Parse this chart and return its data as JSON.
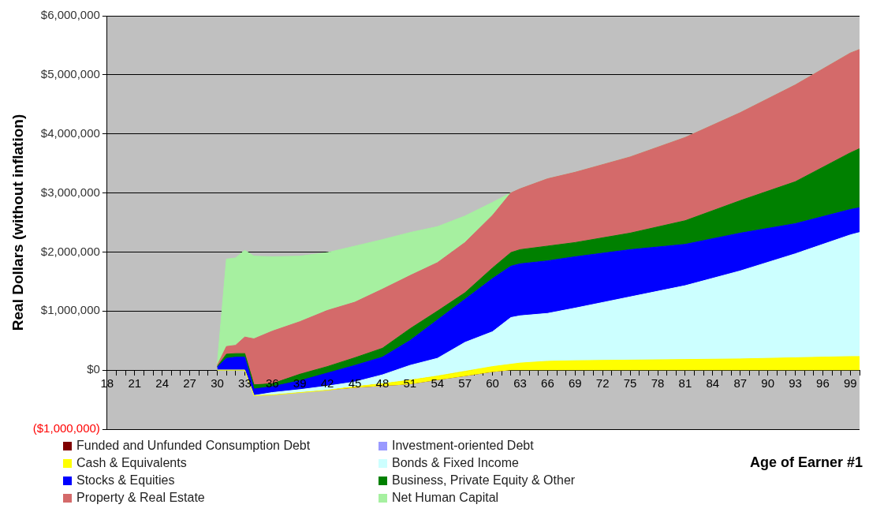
{
  "chart_data": {
    "type": "area",
    "xlabel": "Age of Earner #1",
    "ylabel": "Real Dollars (without inflation)",
    "x": [
      30,
      31,
      32,
      33,
      34,
      36,
      39,
      42,
      45,
      48,
      51,
      54,
      57,
      60,
      62,
      63,
      66,
      69,
      75,
      81,
      87,
      93,
      99,
      100
    ],
    "series": [
      {
        "name": "Funded and Unfunded Consumption Debt",
        "color": "#800000",
        "values": [
          0,
          0,
          0,
          0,
          -430000,
          -420000,
          -380000,
          -340000,
          -300000,
          -270000,
          -240000,
          -170000,
          -100000,
          -30000,
          0,
          0,
          0,
          0,
          0,
          0,
          0,
          0,
          0,
          0
        ]
      },
      {
        "name": "Investment-oriented Debt",
        "color": "#9999ff",
        "values": [
          null,
          null,
          null,
          null,
          null,
          null,
          null,
          null,
          null,
          null,
          null,
          null,
          null,
          null,
          null,
          null,
          null,
          null,
          null,
          null,
          null,
          null,
          null,
          null
        ]
      },
      {
        "name": "Cash & Equivalents",
        "color": "#ffff00",
        "values": [
          0,
          0,
          0,
          0,
          0,
          0,
          0,
          0,
          20000,
          40000,
          70000,
          70000,
          80000,
          90000,
          100000,
          120000,
          150000,
          160000,
          170000,
          180000,
          190000,
          210000,
          230000,
          230000
        ]
      },
      {
        "name": "Bonds & Fixed Income",
        "color": "#ccffff",
        "values": [
          0,
          0,
          0,
          0,
          0,
          40000,
          50000,
          70000,
          80000,
          150000,
          250000,
          300000,
          490000,
          590000,
          790000,
          800000,
          810000,
          890000,
          1070000,
          1250000,
          1490000,
          1760000,
          2060000,
          2100000
        ]
      },
      {
        "name": "Stocks & Equities",
        "color": "#0000ff",
        "values": [
          50000,
          200000,
          220000,
          220000,
          110000,
          100000,
          150000,
          220000,
          280000,
          300000,
          420000,
          650000,
          730000,
          900000,
          870000,
          880000,
          890000,
          870000,
          800000,
          700000,
          640000,
          510000,
          430000,
          420000
        ]
      },
      {
        "name": "Business, Private Equity & Other",
        "color": "#008000",
        "values": [
          10000,
          70000,
          60000,
          60000,
          70000,
          50000,
          110000,
          110000,
          130000,
          150000,
          200000,
          150000,
          110000,
          180000,
          230000,
          240000,
          250000,
          240000,
          280000,
          400000,
          550000,
          710000,
          960000,
          1000000
        ]
      },
      {
        "name": "Property & Real Estate",
        "color": "#d46a6a",
        "values": [
          20000,
          130000,
          140000,
          280000,
          780000,
          890000,
          890000,
          950000,
          940000,
          1000000,
          900000,
          820000,
          850000,
          890000,
          1010000,
          1030000,
          1140000,
          1190000,
          1290000,
          1410000,
          1490000,
          1640000,
          1690000,
          1680000
        ]
      },
      {
        "name": "Net Human Capital",
        "color": "#a6f0a0",
        "values": [
          20000,
          1480000,
          1480000,
          1470000,
          1400000,
          1260000,
          1110000,
          980000,
          950000,
          840000,
          730000,
          610000,
          450000,
          220000,
          0,
          0,
          0,
          0,
          0,
          0,
          0,
          0,
          0,
          0
        ]
      }
    ],
    "stacked": true,
    "xlim": [
      18,
      100
    ],
    "xticks": [
      18,
      {
        "value": 19,
        "label": null
      },
      {
        "value": 20,
        "label": null
      },
      21,
      {
        "value": 22,
        "label": null
      },
      {
        "value": 23,
        "label": null
      },
      24,
      {
        "value": 25,
        "label": null
      },
      {
        "value": 26,
        "label": null
      },
      27,
      {
        "value": 28,
        "label": null
      },
      {
        "value": 29,
        "label": null
      },
      30,
      {
        "value": 31,
        "label": null
      },
      {
        "value": 32,
        "label": null
      },
      33,
      {
        "value": 34,
        "label": null
      },
      {
        "value": 35,
        "label": null
      },
      36,
      {
        "value": 37,
        "label": null
      },
      {
        "value": 38,
        "label": null
      },
      39,
      {
        "value": 40,
        "label": null
      },
      {
        "value": 41,
        "label": null
      },
      42,
      {
        "value": 43,
        "label": null
      },
      {
        "value": 44,
        "label": null
      },
      45,
      {
        "value": 46,
        "label": null
      },
      {
        "value": 47,
        "label": null
      },
      48,
      {
        "value": 49,
        "label": null
      },
      {
        "value": 50,
        "label": null
      },
      51,
      {
        "value": 52,
        "label": null
      },
      {
        "value": 53,
        "label": null
      },
      54,
      {
        "value": 55,
        "label": null
      },
      {
        "value": 56,
        "label": null
      },
      57,
      {
        "value": 58,
        "label": null
      },
      {
        "value": 59,
        "label": null
      },
      60,
      {
        "value": 61,
        "label": null
      },
      {
        "value": 62,
        "label": null
      },
      63,
      {
        "value": 64,
        "label": null
      },
      {
        "value": 65,
        "label": null
      },
      66,
      {
        "value": 67,
        "label": null
      },
      {
        "value": 68,
        "label": null
      },
      69,
      {
        "value": 70,
        "label": null
      },
      {
        "value": 71,
        "label": null
      },
      72,
      {
        "value": 73,
        "label": null
      },
      {
        "value": 74,
        "label": null
      },
      75,
      {
        "value": 76,
        "label": null
      },
      {
        "value": 77,
        "label": null
      },
      78,
      {
        "value": 79,
        "label": null
      },
      {
        "value": 80,
        "label": null
      },
      81,
      {
        "value": 82,
        "label": null
      },
      {
        "value": 83,
        "label": null
      },
      84,
      {
        "value": 85,
        "label": null
      },
      {
        "value": 86,
        "label": null
      },
      87,
      {
        "value": 88,
        "label": null
      },
      {
        "value": 89,
        "label": null
      },
      90,
      {
        "value": 91,
        "label": null
      },
      {
        "value": 92,
        "label": null
      },
      93,
      {
        "value": 94,
        "label": null
      },
      {
        "value": 95,
        "label": null
      },
      96,
      {
        "value": 97,
        "label": null
      },
      {
        "value": 98,
        "label": null
      },
      99,
      {
        "value": 100,
        "label": null
      }
    ],
    "ylim": [
      -1000000,
      6000000
    ],
    "yticks": [
      {
        "value": -1000000,
        "label": "($1,000,000)"
      },
      {
        "value": 0,
        "label": "$0"
      },
      {
        "value": 1000000,
        "label": "$1,000,000"
      },
      {
        "value": 2000000,
        "label": "$2,000,000"
      },
      {
        "value": 3000000,
        "label": "$3,000,000"
      },
      {
        "value": 4000000,
        "label": "$4,000,000"
      },
      {
        "value": 5000000,
        "label": "$5,000,000"
      },
      {
        "value": 6000000,
        "label": "$6,000,000"
      }
    ],
    "grid": "y",
    "legend": "bottom"
  }
}
